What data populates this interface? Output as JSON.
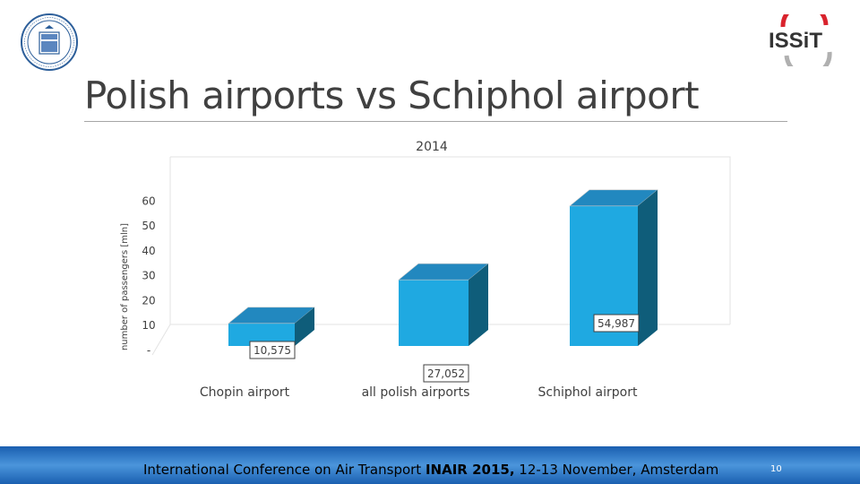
{
  "slide": {
    "title": "Polish airports vs Schiphol airport",
    "logo_right_text": "ISSiT",
    "footer": {
      "prefix": "International Conference on Air Transport ",
      "bold": "INAIR 2015,",
      "suffix": " 12-13 November, Amsterdam"
    },
    "page_number": "10"
  },
  "colors": {
    "bar_front": "#1fa9e1",
    "bar_top": "#2288bf",
    "bar_side": "#0f5d7a",
    "footer_band": "#1f6fc4",
    "title_text": "#404040"
  },
  "chart_data": {
    "type": "bar",
    "title": "2014",
    "ylabel": "number of passengers [mln]",
    "xlabel": "",
    "categories": [
      "Chopin airport",
      "all polish airports",
      "Schiphol airport"
    ],
    "values": [
      10.575,
      27.052,
      54.987
    ],
    "data_labels": [
      "10,575",
      "27,052",
      "54,987"
    ],
    "yticks": [
      "-",
      "10",
      "20",
      "30",
      "40",
      "50",
      "60"
    ],
    "ylim": [
      0,
      60
    ],
    "grid": false,
    "legend": "none",
    "style": "3d-column"
  }
}
